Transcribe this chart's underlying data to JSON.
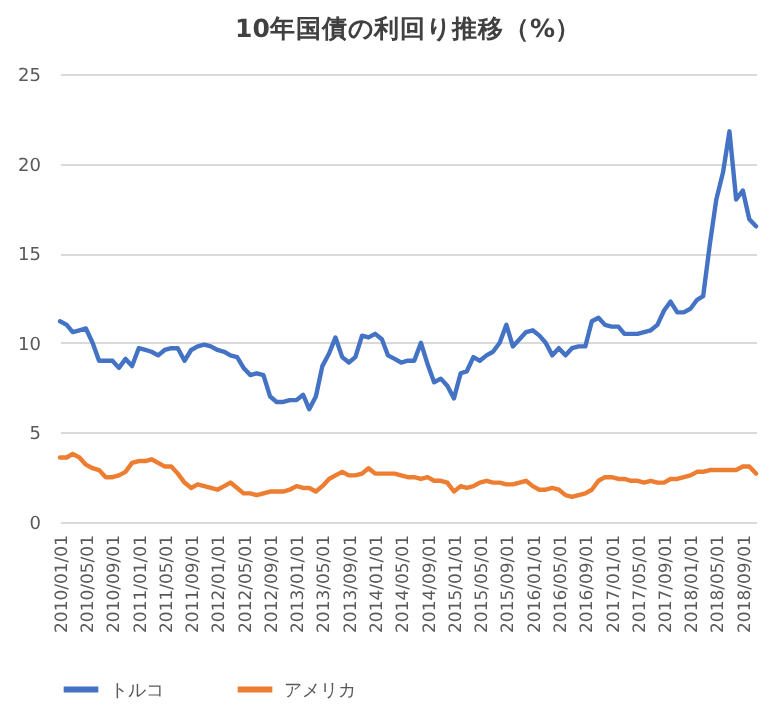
{
  "chart_data": {
    "type": "line",
    "title": "10年国債の利回り推移（%）",
    "x": [
      "2010-01",
      "2010-02",
      "2010-03",
      "2010-04",
      "2010-05",
      "2010-06",
      "2010-07",
      "2010-08",
      "2010-09",
      "2010-10",
      "2010-11",
      "2010-12",
      "2011-01",
      "2011-02",
      "2011-03",
      "2011-04",
      "2011-05",
      "2011-06",
      "2011-07",
      "2011-08",
      "2011-09",
      "2011-10",
      "2011-11",
      "2011-12",
      "2012-01",
      "2012-02",
      "2012-03",
      "2012-04",
      "2012-05",
      "2012-06",
      "2012-07",
      "2012-08",
      "2012-09",
      "2012-10",
      "2012-11",
      "2012-12",
      "2013-01",
      "2013-02",
      "2013-03",
      "2013-04",
      "2013-05",
      "2013-06",
      "2013-07",
      "2013-08",
      "2013-09",
      "2013-10",
      "2013-11",
      "2013-12",
      "2014-01",
      "2014-02",
      "2014-03",
      "2014-04",
      "2014-05",
      "2014-06",
      "2014-07",
      "2014-08",
      "2014-09",
      "2014-10",
      "2014-11",
      "2014-12",
      "2015-01",
      "2015-02",
      "2015-03",
      "2015-04",
      "2015-05",
      "2015-06",
      "2015-07",
      "2015-08",
      "2015-09",
      "2015-10",
      "2015-11",
      "2015-12",
      "2016-01",
      "2016-02",
      "2016-03",
      "2016-04",
      "2016-05",
      "2016-06",
      "2016-07",
      "2016-08",
      "2016-09",
      "2016-10",
      "2016-11",
      "2016-12",
      "2017-01",
      "2017-02",
      "2017-03",
      "2017-04",
      "2017-05",
      "2017-06",
      "2017-07",
      "2017-08",
      "2017-09",
      "2017-10",
      "2017-11",
      "2017-12",
      "2018-01",
      "2018-02",
      "2018-03",
      "2018-04",
      "2018-05",
      "2018-06",
      "2018-07",
      "2018-08",
      "2018-09",
      "2018-10",
      "2018-11"
    ],
    "series": [
      {
        "name": "トルコ",
        "color": "#4472c4",
        "values": [
          11.2,
          11.0,
          10.6,
          10.7,
          10.8,
          10.0,
          9.0,
          9.0,
          9.0,
          8.6,
          9.1,
          8.7,
          9.7,
          9.6,
          9.5,
          9.3,
          9.6,
          9.7,
          9.7,
          9.0,
          9.6,
          9.8,
          9.9,
          9.8,
          9.6,
          9.5,
          9.3,
          9.2,
          8.6,
          8.2,
          8.3,
          8.2,
          7.0,
          6.7,
          6.7,
          6.8,
          6.8,
          7.1,
          6.3,
          7.0,
          8.7,
          9.4,
          10.3,
          9.2,
          8.9,
          9.2,
          10.4,
          10.3,
          10.5,
          10.2,
          9.3,
          9.1,
          8.9,
          9.0,
          9.0,
          10.0,
          8.8,
          7.8,
          8.0,
          7.6,
          6.9,
          8.3,
          8.4,
          9.2,
          9.0,
          9.3,
          9.5,
          10.0,
          11.0,
          9.8,
          10.2,
          10.6,
          10.7,
          10.4,
          10.0,
          9.3,
          9.7,
          9.3,
          9.7,
          9.8,
          9.8,
          11.2,
          11.4,
          11.0,
          10.9,
          10.9,
          10.5,
          10.5,
          10.5,
          10.6,
          10.7,
          11.0,
          11.8,
          12.3,
          11.7,
          11.7,
          11.9,
          12.4,
          12.6,
          15.5,
          18.0,
          19.5,
          21.8,
          18.0,
          18.5,
          16.9,
          16.5
        ]
      },
      {
        "name": "アメリカ",
        "color": "#ed7d31",
        "values": [
          3.6,
          3.6,
          3.8,
          3.6,
          3.2,
          3.0,
          2.9,
          2.5,
          2.5,
          2.6,
          2.8,
          3.3,
          3.4,
          3.4,
          3.5,
          3.3,
          3.1,
          3.1,
          2.7,
          2.2,
          1.9,
          2.1,
          2.0,
          1.9,
          1.8,
          2.0,
          2.2,
          1.9,
          1.6,
          1.6,
          1.5,
          1.6,
          1.7,
          1.7,
          1.7,
          1.8,
          2.0,
          1.9,
          1.9,
          1.7,
          2.0,
          2.4,
          2.6,
          2.8,
          2.6,
          2.6,
          2.7,
          3.0,
          2.7,
          2.7,
          2.7,
          2.7,
          2.6,
          2.5,
          2.5,
          2.4,
          2.5,
          2.3,
          2.3,
          2.2,
          1.7,
          2.0,
          1.9,
          2.0,
          2.2,
          2.3,
          2.2,
          2.2,
          2.1,
          2.1,
          2.2,
          2.3,
          2.0,
          1.8,
          1.8,
          1.9,
          1.8,
          1.5,
          1.4,
          1.5,
          1.6,
          1.8,
          2.3,
          2.5,
          2.5,
          2.4,
          2.4,
          2.3,
          2.3,
          2.2,
          2.3,
          2.2,
          2.2,
          2.4,
          2.4,
          2.5,
          2.6,
          2.8,
          2.8,
          2.9,
          2.9,
          2.9,
          2.9,
          2.9,
          3.1,
          3.1,
          2.7
        ]
      }
    ],
    "xlim": [
      "2010-01",
      "2018-11"
    ],
    "xticks": [
      {
        "value": "2010-01",
        "label": "2010/01/01"
      },
      {
        "value": "2010-05",
        "label": "2010/05/01"
      },
      {
        "value": "2010-09",
        "label": "2010/09/01"
      },
      {
        "value": "2011-01",
        "label": "2011/01/01"
      },
      {
        "value": "2011-05",
        "label": "2011/05/01"
      },
      {
        "value": "2011-09",
        "label": "2011/09/01"
      },
      {
        "value": "2012-01",
        "label": "2012/01/01"
      },
      {
        "value": "2012-05",
        "label": "2012/05/01"
      },
      {
        "value": "2012-09",
        "label": "2012/09/01"
      },
      {
        "value": "2013-01",
        "label": "2013/01/01"
      },
      {
        "value": "2013-05",
        "label": "2013/05/01"
      },
      {
        "value": "2013-09",
        "label": "2013/09/01"
      },
      {
        "value": "2014-01",
        "label": "2014/01/01"
      },
      {
        "value": "2014-05",
        "label": "2014/05/01"
      },
      {
        "value": "2014-09",
        "label": "2014/09/01"
      },
      {
        "value": "2015-01",
        "label": "2015/01/01"
      },
      {
        "value": "2015-05",
        "label": "2015/05/01"
      },
      {
        "value": "2015-09",
        "label": "2015/09/01"
      },
      {
        "value": "2016-01",
        "label": "2016/01/01"
      },
      {
        "value": "2016-05",
        "label": "2016/05/01"
      },
      {
        "value": "2016-09",
        "label": "2016/09/01"
      },
      {
        "value": "2017-01",
        "label": "2017/01/01"
      },
      {
        "value": "2017-05",
        "label": "2017/05/01"
      },
      {
        "value": "2017-09",
        "label": "2017/09/01"
      },
      {
        "value": "2018-01",
        "label": "2018/01/01"
      },
      {
        "value": "2018-05",
        "label": "2018/05/01"
      },
      {
        "value": "2018-09",
        "label": "2018/09/01"
      }
    ],
    "ylim": [
      0,
      25
    ],
    "yticks": [
      0,
      5,
      10,
      15,
      20,
      25
    ],
    "grid": "y",
    "legend": "bottom",
    "marker": "none",
    "line_style": "solid"
  }
}
